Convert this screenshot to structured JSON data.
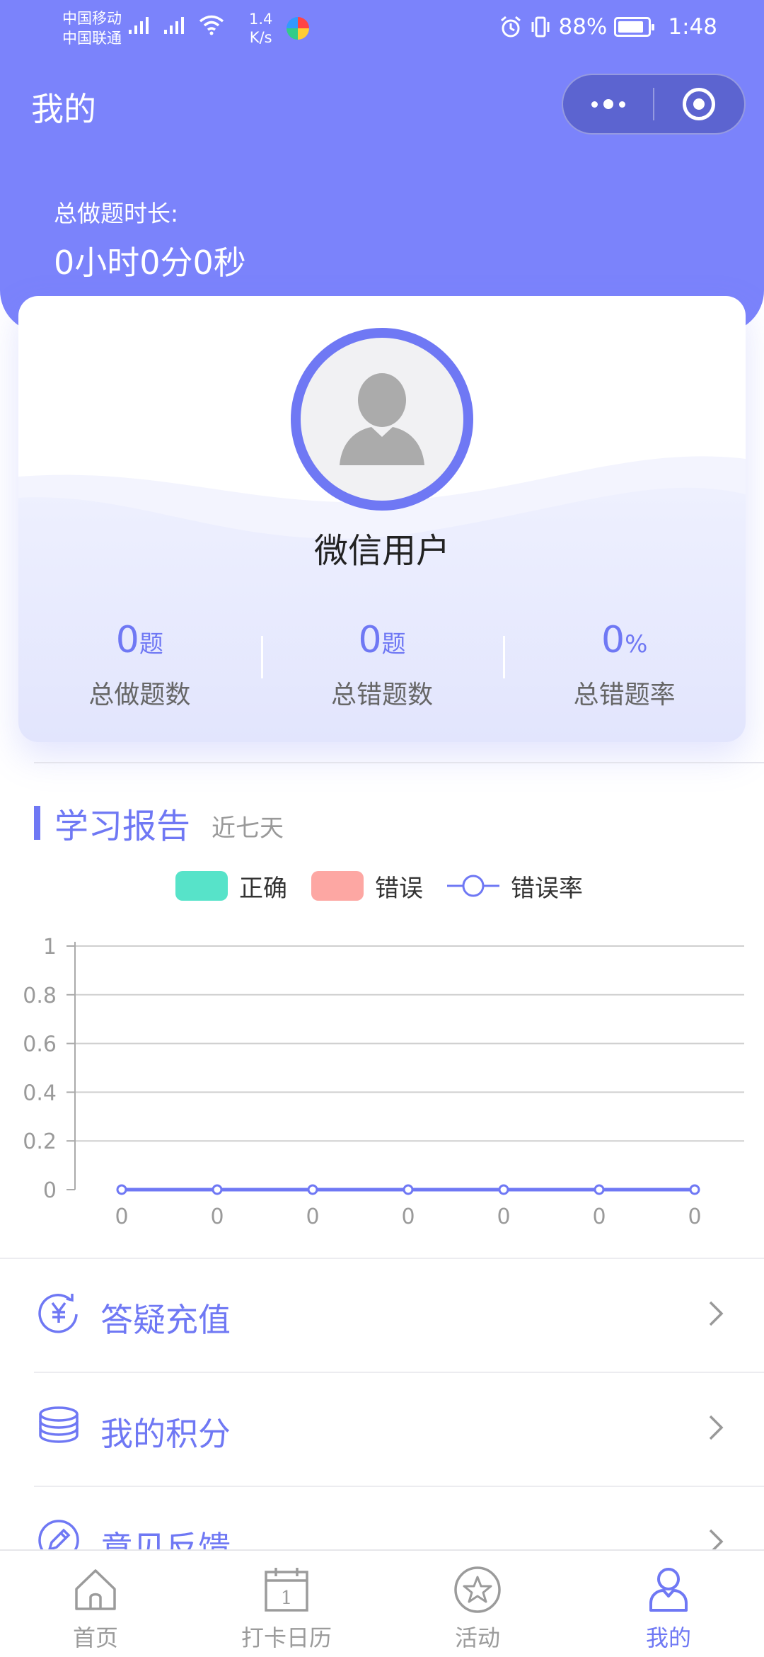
{
  "status_bar": {
    "carrier1": "中国移动",
    "carrier2": "中国联通",
    "net_speed_value": "1.4",
    "net_speed_unit": "K/s",
    "battery": "88%",
    "time": "1:48"
  },
  "header": {
    "title": "我的",
    "duration_label": "总做题时长:",
    "duration_value": "0小时0分0秒"
  },
  "profile": {
    "name": "微信用户",
    "stats": [
      {
        "value": "0",
        "unit": "题",
        "label": "总做题数"
      },
      {
        "value": "0",
        "unit": "题",
        "label": "总错题数"
      },
      {
        "value": "0",
        "unit": "%",
        "label": "总错题率"
      }
    ]
  },
  "report": {
    "title": "学习报告",
    "subtitle": "近七天"
  },
  "chart_data": {
    "type": "line",
    "legend": [
      {
        "name": "正确",
        "color": "#57e3c9",
        "kind": "bar"
      },
      {
        "name": "错误",
        "color": "#fda7a3",
        "kind": "bar"
      },
      {
        "name": "错误率",
        "color": "#6f78f4",
        "kind": "line"
      }
    ],
    "categories": [
      "0",
      "0",
      "0",
      "0",
      "0",
      "0",
      "0"
    ],
    "y_ticks": [
      "0",
      "0.2",
      "0.4",
      "0.6",
      "0.8",
      "1"
    ],
    "ylim": [
      0,
      1
    ],
    "series": [
      {
        "name": "错误率",
        "values": [
          0,
          0,
          0,
          0,
          0,
          0,
          0
        ]
      }
    ],
    "grid": true,
    "legend_position": "top-center"
  },
  "menu": [
    {
      "label": "答疑充值",
      "icon": "yen-refresh-icon"
    },
    {
      "label": "我的积分",
      "icon": "coins-stack-icon"
    },
    {
      "label": "意见反馈",
      "icon": "pencil-icon"
    }
  ],
  "tabbar": [
    {
      "label": "首页",
      "icon": "home-icon"
    },
    {
      "label": "打卡日历",
      "icon": "calendar-icon",
      "icon_text": "1"
    },
    {
      "label": "活动",
      "icon": "star-icon"
    },
    {
      "label": "我的",
      "icon": "person-icon"
    }
  ],
  "colors": {
    "accent": "#6f78f4",
    "header": "#7b83fb",
    "correct": "#57e3c9",
    "wrong": "#fda7a3"
  }
}
